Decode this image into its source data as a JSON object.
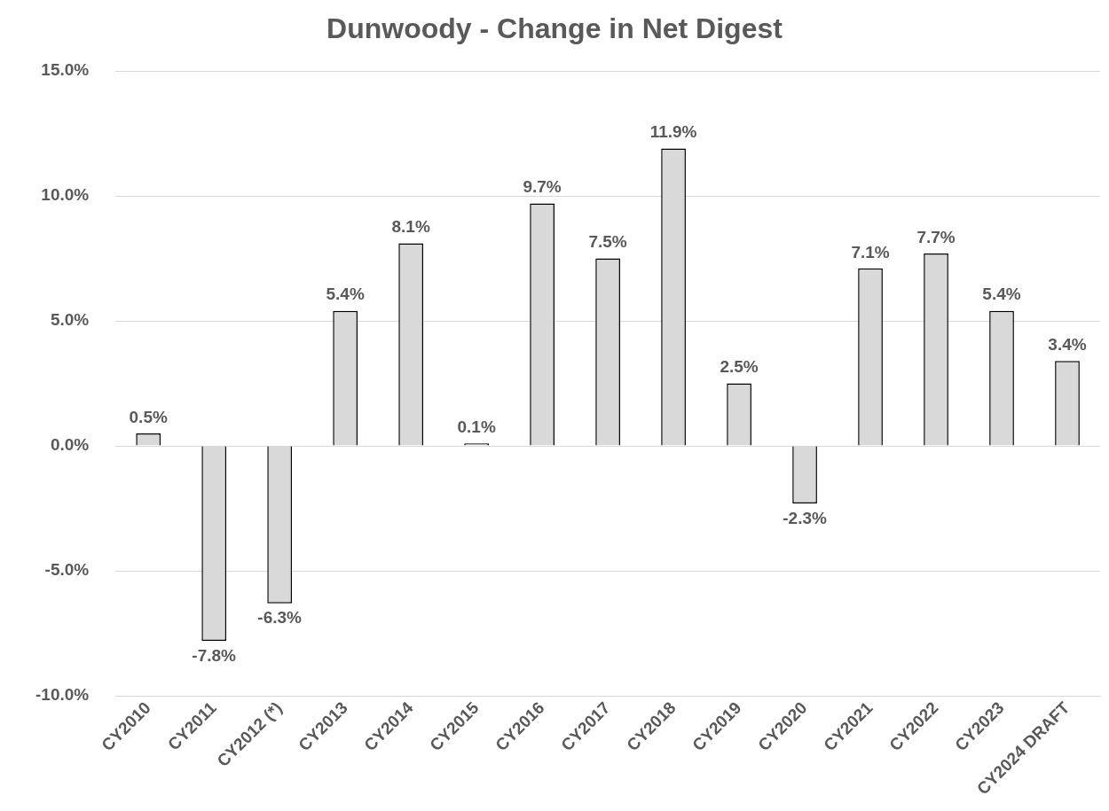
{
  "chart_data": {
    "type": "bar",
    "title": "Dunwoody - Change in Net Digest",
    "categories": [
      "CY2010",
      "CY2011",
      "CY2012 (*)",
      "CY2013",
      "CY2014",
      "CY2015",
      "CY2016",
      "CY2017",
      "CY2018",
      "CY2019",
      "CY2020",
      "CY2021",
      "CY2022",
      "CY2023",
      "CY2024 DRAFT"
    ],
    "values": [
      0.5,
      -7.8,
      -6.3,
      5.4,
      8.1,
      0.1,
      9.7,
      7.5,
      11.9,
      2.5,
      -2.3,
      7.1,
      7.7,
      5.4,
      3.4
    ],
    "value_labels": [
      "0.5%",
      "-7.8%",
      "-6.3%",
      "5.4%",
      "8.1%",
      "0.1%",
      "9.7%",
      "7.5%",
      "11.9%",
      "2.5%",
      "-2.3%",
      "7.1%",
      "7.7%",
      "5.4%",
      "3.4%"
    ],
    "color": "#d9d9d9",
    "ylim": [
      -10,
      15
    ],
    "yticks": [
      {
        "value": -10,
        "label": "-10.0%"
      },
      {
        "value": -5,
        "label": "-5.0%"
      },
      {
        "value": 0,
        "label": "0.0%"
      },
      {
        "value": 5,
        "label": "5.0%"
      },
      {
        "value": 10,
        "label": "10.0%"
      },
      {
        "value": 15,
        "label": "15.0%"
      }
    ],
    "grid": "y",
    "legend": false
  }
}
